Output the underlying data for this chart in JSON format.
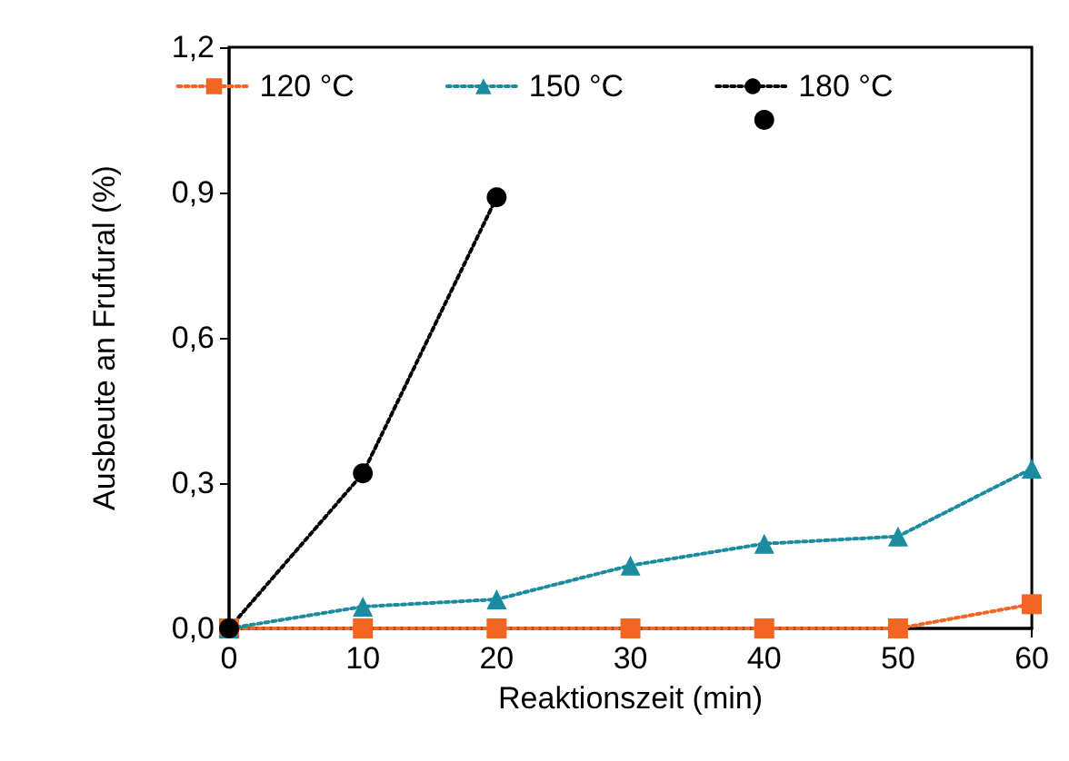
{
  "chart_data": {
    "type": "line",
    "xlabel": "Reaktionszeit (min)",
    "ylabel": "Ausbeute an Frufural (%)",
    "x": [
      0,
      10,
      20,
      30,
      40,
      50,
      60
    ],
    "series": [
      {
        "name": "120 °C",
        "color": "#f26522",
        "marker": "square",
        "values": [
          0,
          0,
          0,
          0,
          0,
          0,
          0.05
        ]
      },
      {
        "name": "150 °C",
        "color": "#1b8ca0",
        "marker": "triangle",
        "values": [
          0,
          0.045,
          0.06,
          0.13,
          0.175,
          0.19,
          0.33
        ]
      },
      {
        "name": "180 °C",
        "color": "#000000",
        "marker": "circle",
        "values": [
          0,
          0.32,
          0.89,
          null,
          1.05,
          null,
          null
        ]
      }
    ],
    "xlim": [
      0,
      60
    ],
    "xticks": [
      0,
      10,
      20,
      30,
      40,
      50,
      60
    ],
    "ylim": [
      0,
      1.2
    ],
    "yticks": [
      {
        "value": 0,
        "label": "0,0"
      },
      {
        "value": 0.3,
        "label": "0,3"
      },
      {
        "value": 0.6,
        "label": "0,6"
      },
      {
        "value": 0.9,
        "label": "0,9"
      },
      {
        "value": 1.2,
        "label": "1,2"
      }
    ],
    "grid": false,
    "legend": "top",
    "line_style": "dotted"
  }
}
